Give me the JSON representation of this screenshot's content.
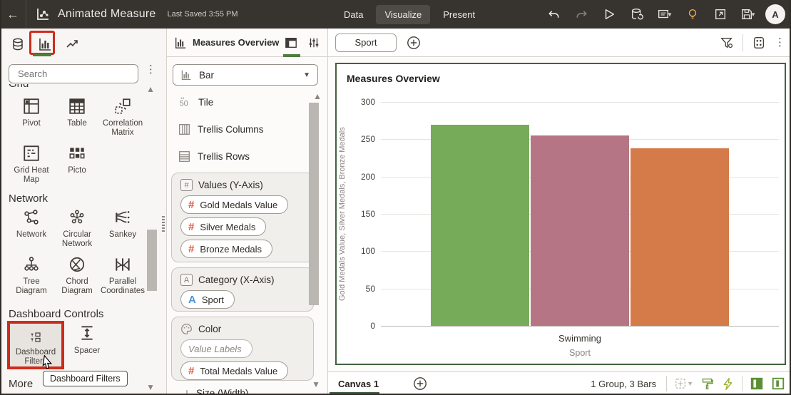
{
  "topbar": {
    "title": "Animated Measure",
    "last_saved": "Last Saved 3:55 PM",
    "tabs": {
      "data": "Data",
      "visualize": "Visualize",
      "present": "Present"
    },
    "avatar": "A"
  },
  "sidebar": {
    "search_placeholder": "Search",
    "sections": {
      "grid": {
        "title": "Grid",
        "items": [
          "Pivot",
          "Table",
          "Correlation Matrix",
          "Grid Heat Map",
          "Picto"
        ]
      },
      "network": {
        "title": "Network",
        "items": [
          "Network",
          "Circular Network",
          "Sankey",
          "Tree Diagram",
          "Chord Diagram",
          "Parallel Coordinates"
        ]
      },
      "dashboard_controls": {
        "title": "Dashboard Controls",
        "items": [
          "Dashboard Filters",
          "Spacer"
        ]
      },
      "more": {
        "title": "More"
      }
    },
    "tooltip": "Dashboard Filters"
  },
  "grammar_panel": {
    "title": "Measures Overview",
    "chart_type": "Bar",
    "list_items": [
      "Tile",
      "Trellis Columns",
      "Trellis Rows"
    ],
    "sections": {
      "values": {
        "label": "Values (Y-Axis)",
        "chips": [
          "Gold Medals Value",
          "Silver Medals",
          "Bronze Medals"
        ]
      },
      "category": {
        "label": "Category (X-Axis)",
        "chips": [
          "Sport"
        ]
      },
      "color": {
        "label": "Color",
        "placeholder": "Value Labels",
        "chips": [
          "Total Medals Value"
        ]
      },
      "size": {
        "label": "Size (Width)"
      }
    }
  },
  "filter_bar": {
    "chips": [
      "Sport"
    ]
  },
  "canvas_bar": {
    "tab": "Canvas 1",
    "status": "1 Group, 3 Bars"
  },
  "chart_data": {
    "type": "bar",
    "title": "Measures Overview",
    "categories": [
      "Swimming"
    ],
    "series": [
      {
        "name": "Gold Medals Value",
        "values": [
          269
        ],
        "color": "#76ab59"
      },
      {
        "name": "Silver Medals",
        "values": [
          255
        ],
        "color": "#b57584"
      },
      {
        "name": "Bronze Medals",
        "values": [
          238
        ],
        "color": "#d57b4a"
      }
    ],
    "xlabel": "Sport",
    "ylabel": "Gold Medals Value, Silver Medals, Bronze Medals",
    "ylim": [
      0,
      300
    ],
    "yticks": [
      0,
      50,
      100,
      150,
      200,
      250,
      300
    ],
    "grid": true,
    "legend": "none"
  }
}
